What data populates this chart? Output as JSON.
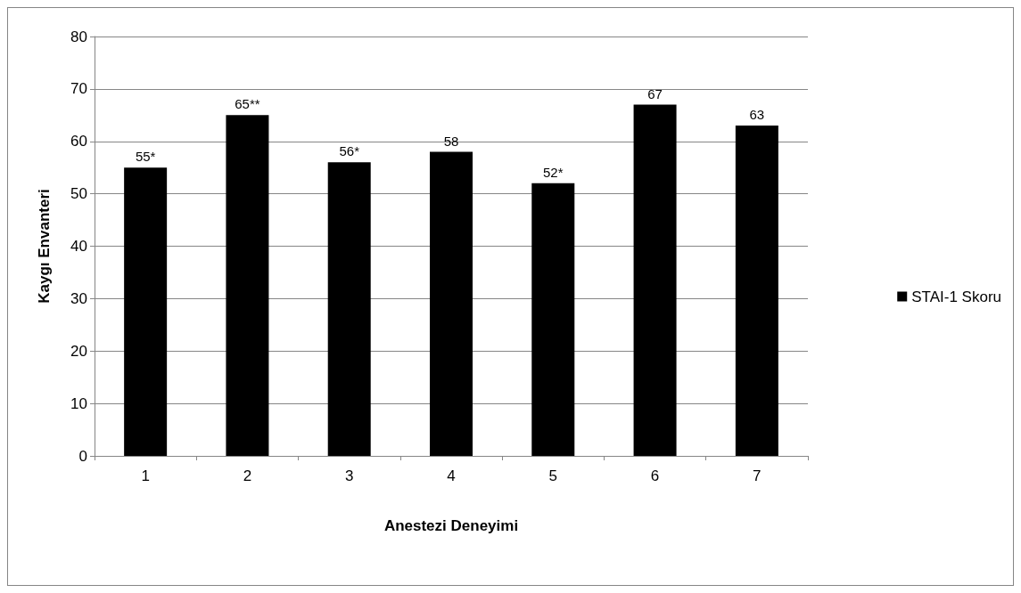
{
  "chart_data": {
    "type": "bar",
    "xlabel": "Anestezi Deneyimi",
    "ylabel": "Kaygı Envanteri",
    "categories": [
      "1",
      "2",
      "3",
      "4",
      "5",
      "6",
      "7"
    ],
    "series": [
      {
        "name": "STAI-1 Skoru",
        "color": "#000000",
        "values": [
          55,
          65,
          56,
          58,
          52,
          67,
          63
        ],
        "value_labels": [
          "55*",
          "65**",
          "56*",
          "58",
          "52*",
          "67",
          "63"
        ]
      }
    ],
    "ylim": [
      0,
      80
    ],
    "yticks": [
      0,
      10,
      20,
      30,
      40,
      50,
      60,
      70,
      80
    ],
    "grid": "y",
    "legend": "right"
  }
}
